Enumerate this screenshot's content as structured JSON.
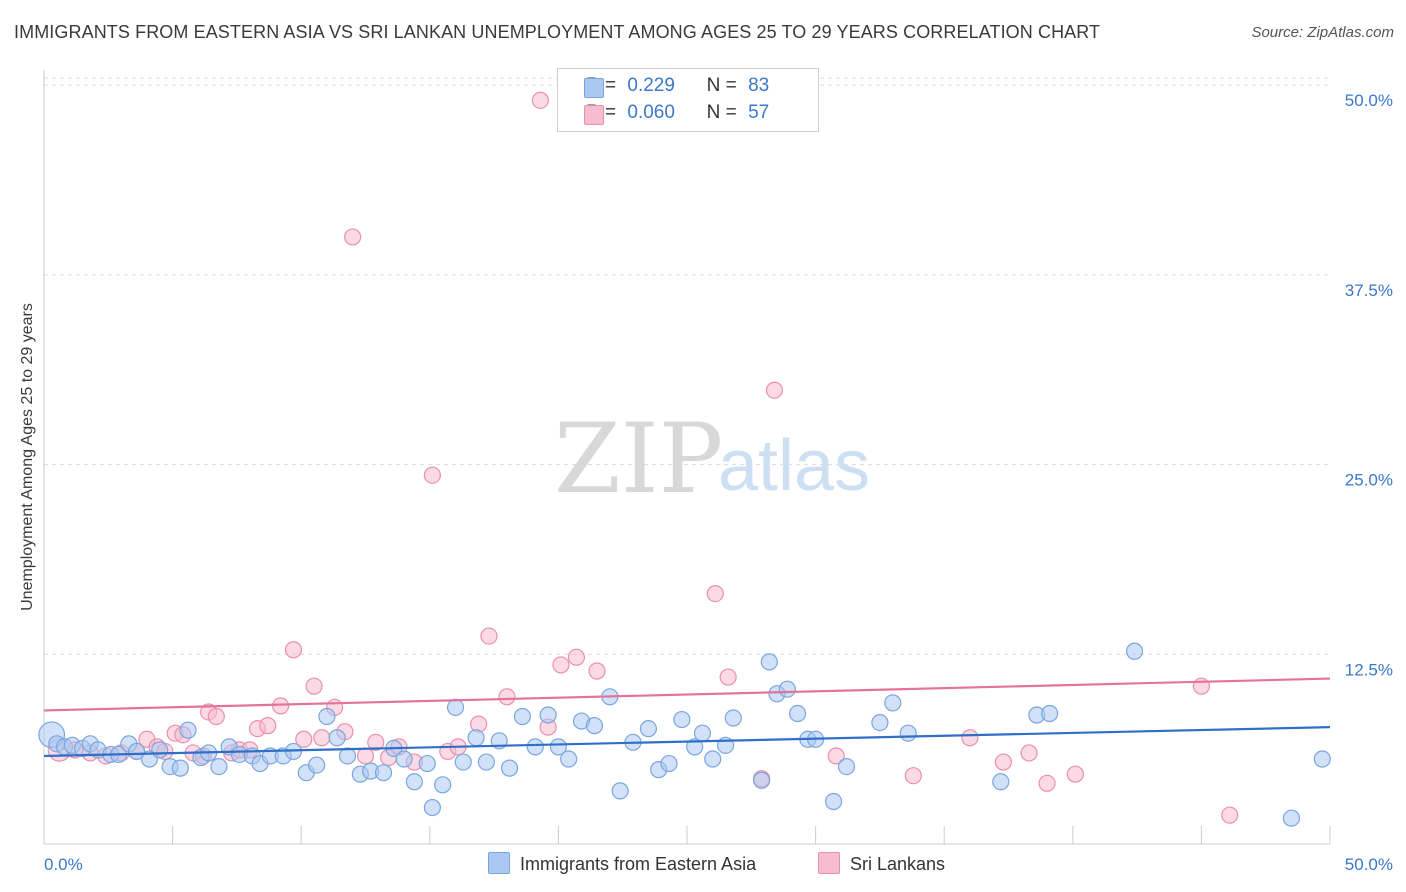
{
  "title": "IMMIGRANTS FROM EASTERN ASIA VS SRI LANKAN UNEMPLOYMENT AMONG AGES 25 TO 29 YEARS CORRELATION CHART",
  "source": "Source: ZipAtlas.com",
  "watermark": {
    "zip": "ZIP",
    "atlas": "atlas"
  },
  "legend": {
    "rows": [
      {
        "r_label": "R =",
        "r_value": "0.229",
        "n_label": "N =",
        "n_value": "83"
      },
      {
        "r_label": "R =",
        "r_value": "0.060",
        "n_label": "N =",
        "n_value": "57"
      }
    ]
  },
  "colors": {
    "blue_fill": "#a9c8f2",
    "blue_stroke": "#7aa6de",
    "blue_line": "#2f6fc8",
    "pink_fill": "#f7bcd0",
    "pink_stroke": "#eb8fae",
    "pink_line": "#e4739c",
    "grid": "#d9d9d9",
    "axis_text": "#3a78c9"
  },
  "chart_data": {
    "type": "scatter",
    "title": "IMMIGRANTS FROM EASTERN ASIA VS SRI LANKAN UNEMPLOYMENT AMONG AGES 25 TO 29 YEARS CORRELATION CHART",
    "xlabel": "",
    "ylabel": "Unemployment Among Ages 25 to 29 years",
    "xlim": [
      0,
      50
    ],
    "ylim": [
      0,
      51
    ],
    "x_tick_labels": [
      {
        "value": 0,
        "label": "0.0%"
      },
      {
        "value": 50,
        "label": "50.0%"
      }
    ],
    "y_tick_labels": [
      {
        "value": 12.5,
        "label": "12.5%"
      },
      {
        "value": 25,
        "label": "25.0%"
      },
      {
        "value": 37.5,
        "label": "37.5%"
      },
      {
        "value": 50,
        "label": "50.0%"
      }
    ],
    "series": [
      {
        "name": "Immigrants from Eastern Asia",
        "color": "blue",
        "trend": {
          "x0": 0,
          "y0": 5.8,
          "x1": 50,
          "y1": 7.7
        },
        "points": [
          [
            0.3,
            7.2,
            1.6
          ],
          [
            0.5,
            6.6,
            1
          ],
          [
            0.8,
            6.4,
            1
          ],
          [
            1.1,
            6.5,
            1
          ],
          [
            1.5,
            6.3,
            1
          ],
          [
            1.8,
            6.6,
            1
          ],
          [
            2.1,
            6.2,
            1
          ],
          [
            2.6,
            5.9,
            1
          ],
          [
            2.9,
            5.9,
            1
          ],
          [
            3.3,
            6.6,
            1
          ],
          [
            3.6,
            6.1,
            1
          ],
          [
            4.1,
            5.6,
            1
          ],
          [
            4.5,
            6.2,
            1
          ],
          [
            4.9,
            5.1,
            1
          ],
          [
            5.3,
            5.0,
            1
          ],
          [
            5.6,
            7.5,
            1
          ],
          [
            6.1,
            5.7,
            1
          ],
          [
            6.4,
            6.0,
            1
          ],
          [
            6.8,
            5.1,
            1
          ],
          [
            7.2,
            6.4,
            1
          ],
          [
            7.6,
            5.9,
            1
          ],
          [
            8.1,
            5.8,
            1
          ],
          [
            8.4,
            5.3,
            1
          ],
          [
            8.8,
            5.8,
            1
          ],
          [
            9.3,
            5.8,
            1
          ],
          [
            9.7,
            6.1,
            1
          ],
          [
            10.2,
            4.7,
            1
          ],
          [
            10.6,
            5.2,
            1
          ],
          [
            11.0,
            8.4,
            1
          ],
          [
            11.4,
            7.0,
            1
          ],
          [
            11.8,
            5.8,
            1
          ],
          [
            12.3,
            4.6,
            1
          ],
          [
            12.7,
            4.8,
            1
          ],
          [
            13.2,
            4.7,
            1
          ],
          [
            13.6,
            6.3,
            1
          ],
          [
            14.0,
            5.6,
            1
          ],
          [
            14.4,
            4.1,
            1
          ],
          [
            14.9,
            5.3,
            1
          ],
          [
            15.1,
            2.4,
            1
          ],
          [
            15.5,
            3.9,
            1
          ],
          [
            16.0,
            9.0,
            1
          ],
          [
            16.3,
            5.4,
            1
          ],
          [
            16.8,
            7.0,
            1
          ],
          [
            17.2,
            5.4,
            1
          ],
          [
            17.7,
            6.8,
            1
          ],
          [
            18.1,
            5.0,
            1
          ],
          [
            18.6,
            8.4,
            1
          ],
          [
            19.1,
            6.4,
            1
          ],
          [
            19.6,
            8.5,
            1
          ],
          [
            20.0,
            6.4,
            1
          ],
          [
            20.4,
            5.6,
            1
          ],
          [
            20.9,
            8.1,
            1
          ],
          [
            21.4,
            7.8,
            1
          ],
          [
            22.0,
            9.7,
            1
          ],
          [
            22.4,
            3.5,
            1
          ],
          [
            22.9,
            6.7,
            1
          ],
          [
            23.5,
            7.6,
            1
          ],
          [
            23.9,
            4.9,
            1
          ],
          [
            24.3,
            5.3,
            1
          ],
          [
            24.8,
            8.2,
            1
          ],
          [
            25.3,
            6.4,
            1
          ],
          [
            25.6,
            7.3,
            1
          ],
          [
            26.0,
            5.6,
            1
          ],
          [
            26.5,
            6.5,
            1
          ],
          [
            26.8,
            8.3,
            1
          ],
          [
            27.9,
            4.2,
            1
          ],
          [
            28.2,
            12.0,
            1
          ],
          [
            28.5,
            9.9,
            1
          ],
          [
            28.9,
            10.2,
            1
          ],
          [
            29.3,
            8.6,
            1
          ],
          [
            29.7,
            6.9,
            1
          ],
          [
            30.0,
            6.9,
            1
          ],
          [
            30.7,
            2.8,
            1
          ],
          [
            31.2,
            5.1,
            1
          ],
          [
            32.5,
            8.0,
            1
          ],
          [
            33.0,
            9.3,
            1
          ],
          [
            33.6,
            7.3,
            1
          ],
          [
            37.2,
            4.1,
            1
          ],
          [
            38.6,
            8.5,
            1
          ],
          [
            39.1,
            8.6,
            1
          ],
          [
            42.4,
            12.7,
            1
          ],
          [
            48.5,
            1.7,
            1
          ],
          [
            49.7,
            5.6,
            1
          ]
        ]
      },
      {
        "name": "Sri Lankans",
        "color": "pink",
        "trend": {
          "x0": 0,
          "y0": 8.8,
          "x1": 50,
          "y1": 10.9
        },
        "points": [
          [
            0.6,
            6.2,
            1.4
          ],
          [
            1.2,
            6.2,
            1
          ],
          [
            1.8,
            6.0,
            1
          ],
          [
            2.4,
            5.8,
            1
          ],
          [
            3.0,
            6.0,
            1
          ],
          [
            3.6,
            6.1,
            1
          ],
          [
            4.0,
            6.9,
            1
          ],
          [
            4.4,
            6.4,
            1
          ],
          [
            4.7,
            6.1,
            1
          ],
          [
            5.1,
            7.3,
            1
          ],
          [
            5.4,
            7.2,
            1
          ],
          [
            5.8,
            6.0,
            1
          ],
          [
            6.2,
            5.8,
            1
          ],
          [
            6.4,
            8.7,
            1
          ],
          [
            6.7,
            8.4,
            1
          ],
          [
            7.3,
            6.0,
            1
          ],
          [
            7.6,
            6.2,
            1
          ],
          [
            8.0,
            6.2,
            1
          ],
          [
            8.3,
            7.6,
            1
          ],
          [
            8.7,
            7.8,
            1
          ],
          [
            9.2,
            9.1,
            1
          ],
          [
            9.7,
            12.8,
            1
          ],
          [
            10.1,
            6.9,
            1
          ],
          [
            10.5,
            10.4,
            1
          ],
          [
            10.8,
            7.0,
            1
          ],
          [
            11.3,
            9.0,
            1
          ],
          [
            11.7,
            7.4,
            1
          ],
          [
            12.0,
            40.0,
            1
          ],
          [
            12.5,
            5.8,
            1
          ],
          [
            12.9,
            6.7,
            1
          ],
          [
            13.4,
            5.7,
            1
          ],
          [
            13.8,
            6.4,
            1
          ],
          [
            14.4,
            5.4,
            1
          ],
          [
            15.1,
            24.3,
            1
          ],
          [
            15.7,
            6.1,
            1
          ],
          [
            16.1,
            6.4,
            1
          ],
          [
            16.9,
            7.9,
            1
          ],
          [
            17.3,
            13.7,
            1
          ],
          [
            18.0,
            9.7,
            1
          ],
          [
            19.3,
            49.0,
            1
          ],
          [
            19.6,
            7.7,
            1
          ],
          [
            20.1,
            11.8,
            1
          ],
          [
            20.7,
            12.3,
            1
          ],
          [
            21.5,
            11.4,
            1
          ],
          [
            26.1,
            16.5,
            1
          ],
          [
            26.6,
            11.0,
            1
          ],
          [
            27.9,
            4.3,
            1
          ],
          [
            28.4,
            29.9,
            1
          ],
          [
            30.8,
            5.8,
            1
          ],
          [
            33.8,
            4.5,
            1
          ],
          [
            36.0,
            7.0,
            1
          ],
          [
            37.3,
            5.4,
            1
          ],
          [
            38.3,
            6.0,
            1
          ],
          [
            39.0,
            4.0,
            1
          ],
          [
            40.1,
            4.6,
            1
          ],
          [
            45.0,
            10.4,
            1
          ],
          [
            46.1,
            1.9,
            1
          ]
        ]
      }
    ]
  },
  "bottom_legend": {
    "blue_label": "Immigrants from Eastern Asia",
    "pink_label": "Sri Lankans"
  }
}
